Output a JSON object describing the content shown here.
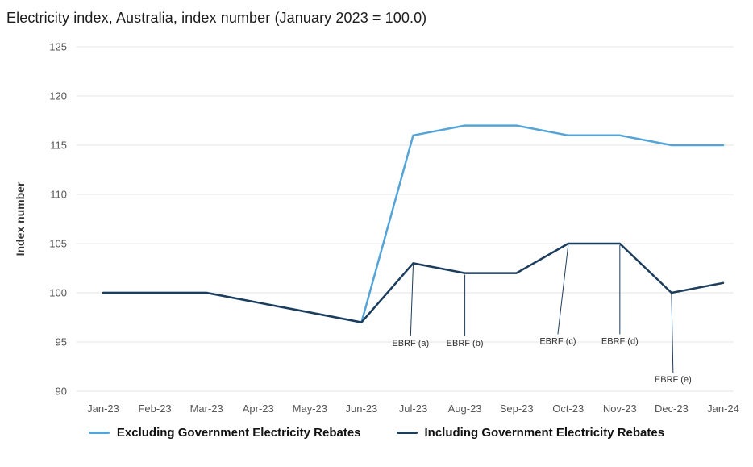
{
  "title": "Electricity index, Australia, index number (January 2023 = 100.0)",
  "chart_data": {
    "type": "line",
    "x": [
      "Jan-23",
      "Feb-23",
      "Mar-23",
      "Apr-23",
      "May-23",
      "Jun-23",
      "Jul-23",
      "Aug-23",
      "Sep-23",
      "Oct-23",
      "Nov-23",
      "Dec-23",
      "Jan-24"
    ],
    "series": [
      {
        "name": "Excluding Government Electricity Rebates",
        "color": "#54a4d8",
        "values": [
          100,
          100,
          100,
          99,
          98,
          97,
          116,
          117,
          117,
          116,
          116,
          115,
          115
        ]
      },
      {
        "name": "Including Government Electricity Rebates",
        "color": "#1d3d5c",
        "values": [
          100,
          100,
          100,
          99,
          98,
          97,
          103,
          102,
          102,
          105,
          105,
          100,
          101
        ]
      }
    ],
    "xlabel": "",
    "ylabel": "Index number",
    "ylim": [
      90,
      125
    ],
    "yticks": [
      90,
      95,
      100,
      105,
      110,
      115,
      120,
      125
    ],
    "grid": true,
    "legend_position": "bottom",
    "annotations": [
      {
        "text": "EBRF (a)",
        "month_index": 6,
        "point_value": 103,
        "label_month_offset": -0.05,
        "label_value": 94.6
      },
      {
        "text": "EBRF (b)",
        "month_index": 7,
        "point_value": 102,
        "label_month_offset": 0,
        "label_value": 94.6
      },
      {
        "text": "EBRF (c)",
        "month_index": 9,
        "point_value": 105,
        "label_month_offset": -0.2,
        "label_value": 94.8
      },
      {
        "text": "EBRF (d)",
        "month_index": 10,
        "point_value": 105,
        "label_month_offset": 0,
        "label_value": 94.8
      },
      {
        "text": "EBRF (e)",
        "month_index": 11,
        "point_value": 100,
        "label_month_offset": 0.03,
        "label_value": 90.9
      }
    ],
    "colors": {
      "gridline": "#e4e4e4",
      "tick_text": "#555555",
      "annotation_leader": "#1d3d5c"
    }
  }
}
